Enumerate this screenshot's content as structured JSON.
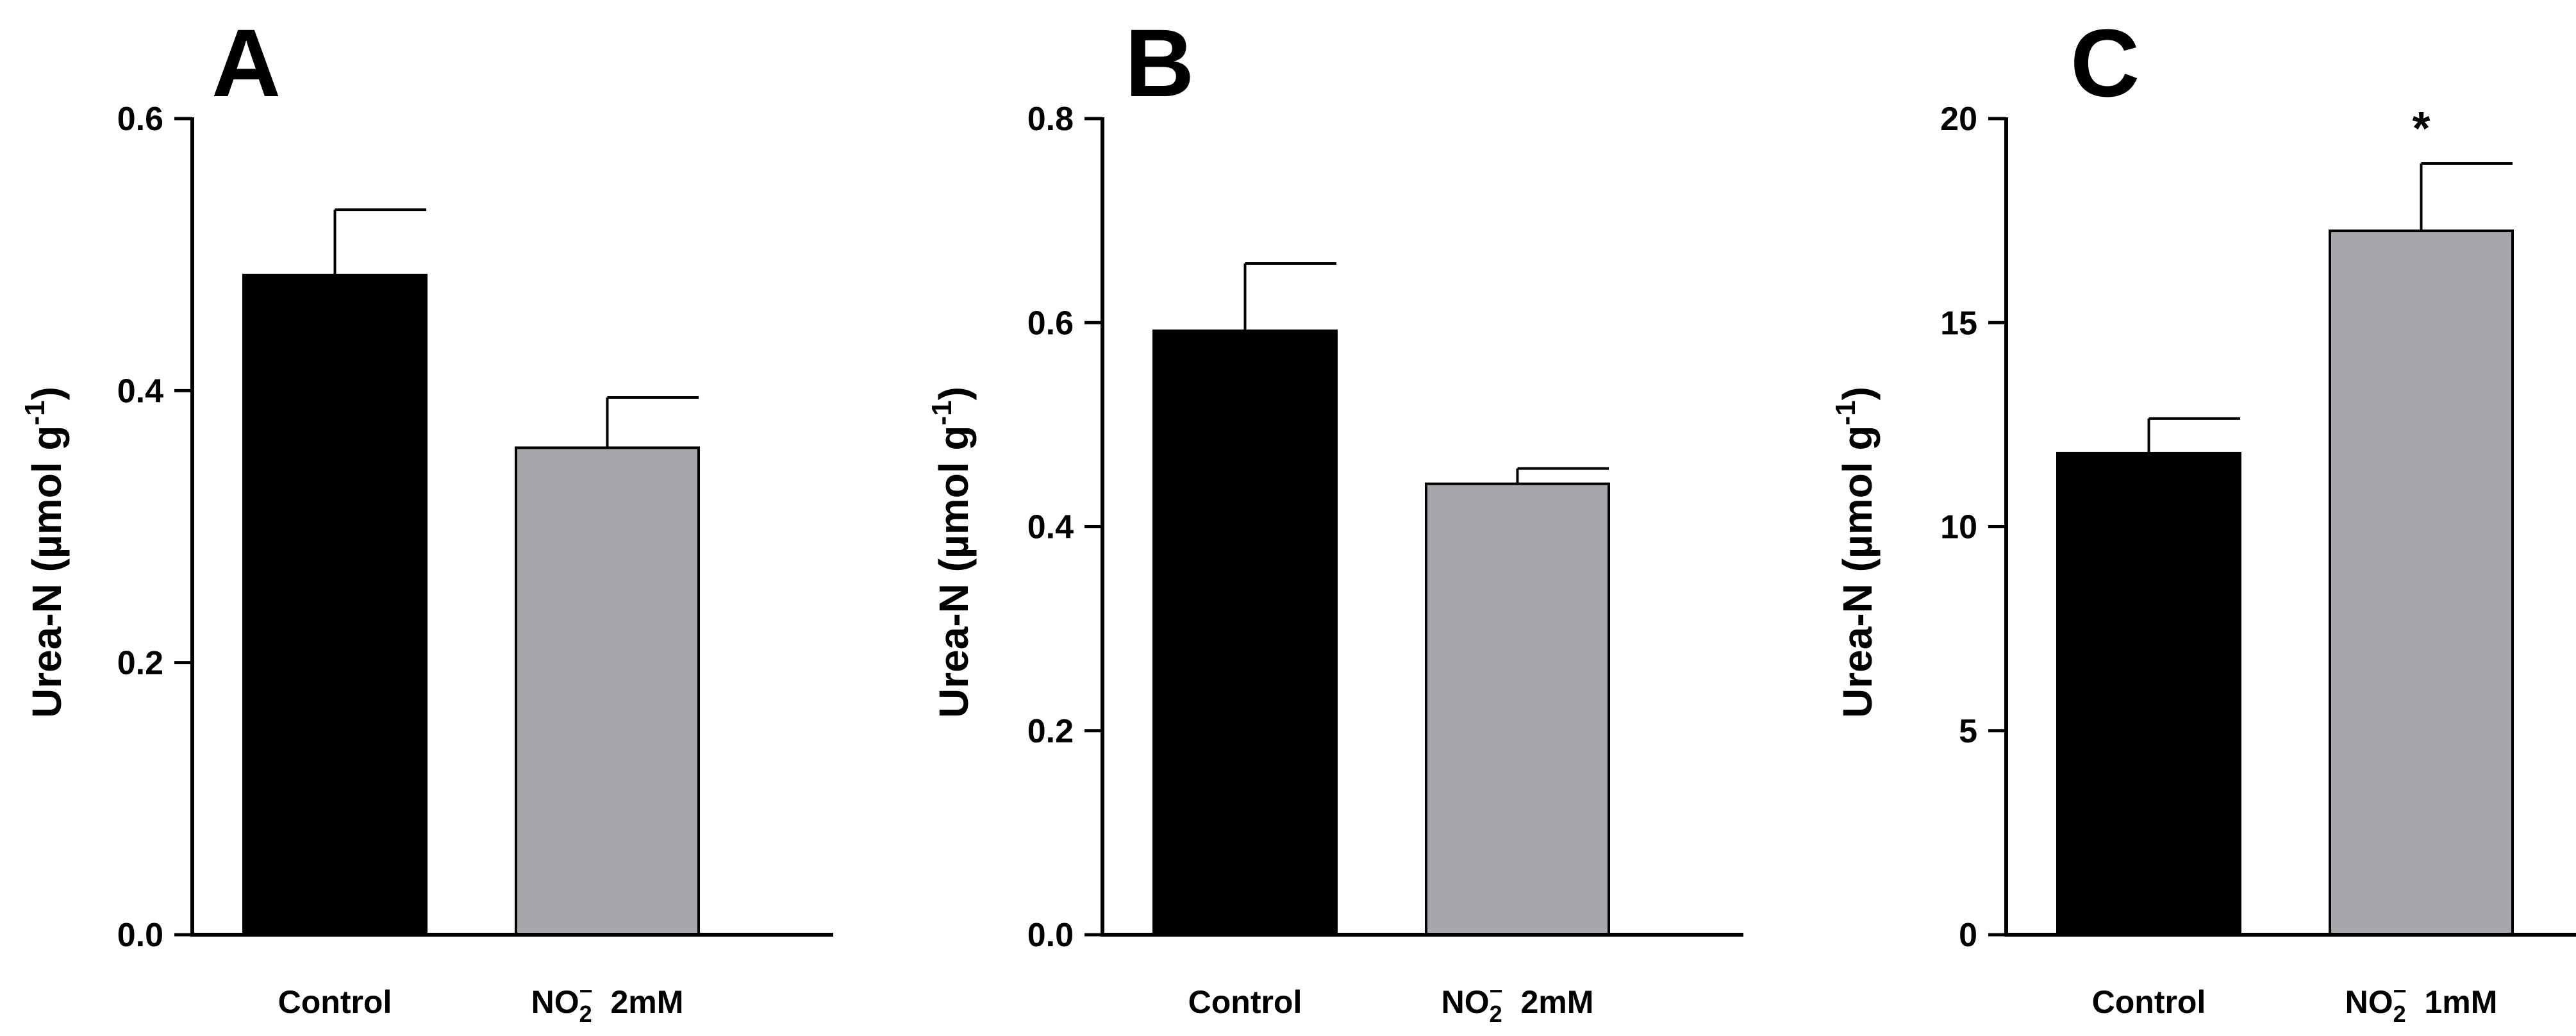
{
  "colors": {
    "control": "#000000",
    "treatment": "#a7a6ab",
    "axis": "#000000"
  },
  "chart_data": [
    {
      "type": "bar",
      "panel_label": "A",
      "ylabel": "Urea-N (µmol g",
      "ylabel_sup": "-1",
      "ylabel_close": ")",
      "ylim": [
        0,
        0.6
      ],
      "yticks": [
        {
          "value": 0.0,
          "label": "0.0"
        },
        {
          "value": 0.2,
          "label": "0.2"
        },
        {
          "value": 0.4,
          "label": "0.4"
        },
        {
          "value": 0.6,
          "label": "0.6"
        }
      ],
      "categories": [
        {
          "pre": "Control",
          "sub": "",
          "sup": "",
          "post": ""
        },
        {
          "pre": "NO",
          "sub": "2",
          "sup": "−",
          "post": "2mM"
        }
      ],
      "values": [
        0.485,
        0.358
      ],
      "errors": [
        0.048,
        0.037
      ],
      "significance": [
        "",
        ""
      ]
    },
    {
      "type": "bar",
      "panel_label": "B",
      "ylabel": "Urea-N (µmol g",
      "ylabel_sup": "-1",
      "ylabel_close": ")",
      "ylim": [
        0,
        0.8
      ],
      "yticks": [
        {
          "value": 0.0,
          "label": "0.0"
        },
        {
          "value": 0.2,
          "label": "0.2"
        },
        {
          "value": 0.4,
          "label": "0.4"
        },
        {
          "value": 0.6,
          "label": "0.6"
        },
        {
          "value": 0.8,
          "label": "0.8"
        }
      ],
      "categories": [
        {
          "pre": "Control",
          "sub": "",
          "sup": "",
          "post": ""
        },
        {
          "pre": "NO",
          "sub": "2",
          "sup": "−",
          "post": "2mM"
        }
      ],
      "values": [
        0.592,
        0.442
      ],
      "errors": [
        0.066,
        0.015
      ],
      "significance": [
        "",
        ""
      ]
    },
    {
      "type": "bar",
      "panel_label": "C",
      "ylabel": "Urea-N (µmol g",
      "ylabel_sup": "-1",
      "ylabel_close": ")",
      "ylim": [
        0,
        20
      ],
      "yticks": [
        {
          "value": 0,
          "label": "0"
        },
        {
          "value": 5,
          "label": "5"
        },
        {
          "value": 10,
          "label": "10"
        },
        {
          "value": 15,
          "label": "15"
        },
        {
          "value": 20,
          "label": "20"
        }
      ],
      "categories": [
        {
          "pre": "Control",
          "sub": "",
          "sup": "",
          "post": ""
        },
        {
          "pre": "NO",
          "sub": "2",
          "sup": "−",
          "post": "1mM"
        }
      ],
      "values": [
        11.8,
        17.25
      ],
      "errors": [
        0.85,
        1.65
      ],
      "significance": [
        "",
        "*"
      ]
    }
  ]
}
